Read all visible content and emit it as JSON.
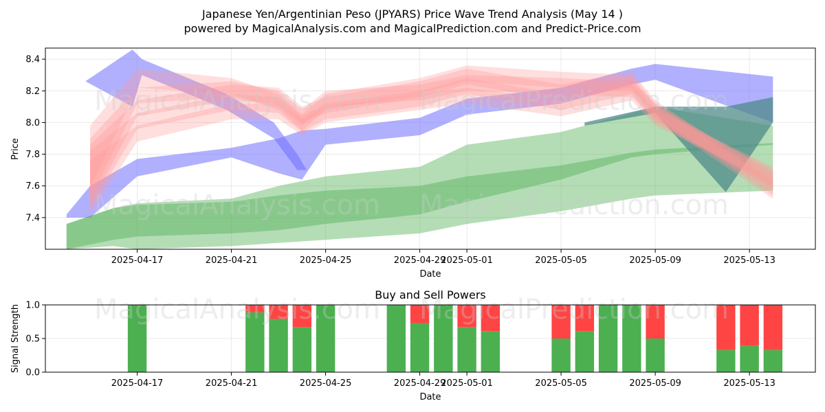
{
  "title_line1": "Japanese Yen/Argentinian Peso (JPYARS) Price Wave Trend Analysis (May 14 )",
  "title_line2": "powered by MagicalAnalysis.com and MagicalPrediction.com and Predict-Price.com",
  "watermarks": [
    "MagicalAnalysis.com",
    "MagicalPrediction.com"
  ],
  "colors": {
    "red": "#ff9999",
    "blue": "#6666ff",
    "green": "#4caf50",
    "buy": "#4caf50",
    "sell": "#ff4444",
    "grid": "#e6e6e6"
  },
  "chart_data": [
    {
      "type": "area",
      "id": "price",
      "title": "",
      "xlabel": "Date",
      "ylabel": "Price",
      "xlim": [
        "2025-04-14",
        "2025-05-15"
      ],
      "ylim": [
        7.2,
        8.47
      ],
      "xticks": [
        "2025-04-17",
        "2025-04-21",
        "2025-04-25",
        "2025-04-29",
        "2025-05-01",
        "2025-05-05",
        "2025-05-09",
        "2025-05-13"
      ],
      "yticks": [
        "7.4",
        "7.6",
        "7.8",
        "8.0",
        "8.2",
        "8.4"
      ],
      "series": [
        {
          "name": "red wave 1",
          "color": "red",
          "x": [
            "2025-04-15",
            "2025-04-17",
            "2025-04-21",
            "2025-04-23",
            "2025-04-24",
            "2025-04-25",
            "2025-04-29",
            "2025-05-01",
            "2025-05-05",
            "2025-05-08",
            "2025-05-09",
            "2025-05-14"
          ],
          "upper": [
            7.98,
            8.34,
            8.28,
            8.18,
            8.05,
            8.18,
            8.28,
            8.36,
            8.32,
            8.3,
            8.12,
            7.62
          ],
          "lower": [
            7.58,
            8.22,
            8.18,
            8.08,
            7.95,
            8.08,
            8.18,
            8.26,
            8.22,
            8.2,
            8.02,
            7.52
          ]
        },
        {
          "name": "red wave 2",
          "color": "red",
          "x": [
            "2025-04-15",
            "2025-04-17",
            "2025-04-21",
            "2025-04-23",
            "2025-04-24",
            "2025-04-25",
            "2025-04-29",
            "2025-05-01",
            "2025-05-05",
            "2025-05-08",
            "2025-05-09",
            "2025-05-14"
          ],
          "upper": [
            7.9,
            8.22,
            8.26,
            8.2,
            8.08,
            8.2,
            8.24,
            8.3,
            8.28,
            8.26,
            8.12,
            7.68
          ],
          "lower": [
            7.52,
            8.12,
            8.16,
            8.1,
            7.98,
            8.1,
            8.14,
            8.2,
            8.18,
            8.16,
            8.02,
            7.58
          ]
        },
        {
          "name": "red wave 3",
          "color": "red",
          "x": [
            "2025-04-15",
            "2025-04-17",
            "2025-04-21",
            "2025-04-23",
            "2025-04-24",
            "2025-04-25",
            "2025-04-29",
            "2025-05-01",
            "2025-05-05",
            "2025-05-08",
            "2025-05-09",
            "2025-05-14"
          ],
          "upper": [
            7.86,
            8.14,
            8.24,
            8.22,
            8.1,
            8.16,
            8.26,
            8.34,
            8.24,
            8.32,
            8.14,
            7.64
          ],
          "lower": [
            7.48,
            8.04,
            8.14,
            8.12,
            8.0,
            8.06,
            8.16,
            8.24,
            8.14,
            8.22,
            8.04,
            7.54
          ]
        },
        {
          "name": "red wave 4",
          "color": "red",
          "x": [
            "2025-04-15",
            "2025-04-17",
            "2025-04-21",
            "2025-04-23",
            "2025-04-24",
            "2025-04-25",
            "2025-04-29",
            "2025-05-01",
            "2025-05-05",
            "2025-05-08",
            "2025-05-09",
            "2025-05-14"
          ],
          "upper": [
            7.82,
            8.06,
            8.18,
            8.16,
            8.04,
            8.12,
            8.2,
            8.28,
            8.18,
            8.28,
            8.1,
            7.7
          ],
          "lower": [
            7.46,
            7.96,
            8.08,
            8.06,
            7.94,
            8.02,
            8.1,
            8.18,
            8.08,
            8.18,
            8.0,
            7.6
          ]
        },
        {
          "name": "red wave 5",
          "color": "red",
          "x": [
            "2025-04-15",
            "2025-04-17",
            "2025-04-21",
            "2025-04-23",
            "2025-04-24",
            "2025-04-25",
            "2025-04-29",
            "2025-05-01",
            "2025-05-05",
            "2025-05-08",
            "2025-05-09",
            "2025-05-14"
          ],
          "upper": [
            7.76,
            7.98,
            8.12,
            8.12,
            8.02,
            8.1,
            8.18,
            8.22,
            8.14,
            8.24,
            8.08,
            7.72
          ],
          "lower": [
            7.42,
            7.88,
            8.02,
            8.02,
            7.92,
            8.0,
            8.08,
            8.12,
            8.04,
            8.14,
            7.98,
            7.62
          ]
        },
        {
          "name": "blue wave",
          "color": "blue",
          "x": [
            "2025-04-14",
            "2025-04-15",
            "2025-04-17",
            "2025-04-21",
            "2025-04-23",
            "2025-04-24",
            "2025-04-25",
            "2025-04-29",
            "2025-05-01",
            "2025-05-05",
            "2025-05-08",
            "2025-05-09",
            "2025-05-14"
          ],
          "upper": [
            7.42,
            7.6,
            7.77,
            7.84,
            7.9,
            7.95,
            7.96,
            8.03,
            8.15,
            8.22,
            8.34,
            8.37,
            8.29
          ],
          "lower": [
            7.4,
            7.4,
            7.66,
            7.78,
            7.68,
            7.64,
            7.86,
            7.92,
            8.05,
            8.12,
            8.24,
            8.27,
            8.0
          ]
        },
        {
          "name": "blue spike",
          "color": "blue",
          "x": [
            "2025-04-14.8",
            "2025-04-16.8",
            "2025-04-17.2",
            "2025-04-20.8",
            "2025-04-22.8",
            "2025-04-23.8",
            "2025-04-24.2"
          ],
          "upper": [
            8.26,
            8.46,
            8.4,
            8.18,
            8.0,
            7.8,
            7.7
          ],
          "lower": [
            8.26,
            8.1,
            8.3,
            8.08,
            7.9,
            7.7,
            7.7
          ]
        },
        {
          "name": "teal band",
          "color": "teal",
          "x": [
            "2025-05-06",
            "2025-05-09",
            "2025-05-12",
            "2025-05-14"
          ],
          "upper": [
            8.0,
            8.1,
            8.1,
            8.16
          ],
          "lower": [
            7.98,
            8.06,
            7.56,
            8.0
          ]
        },
        {
          "name": "green wave light",
          "color": "green",
          "x": [
            "2025-04-14",
            "2025-04-16",
            "2025-04-17",
            "2025-04-21",
            "2025-04-23",
            "2025-04-25",
            "2025-04-29",
            "2025-05-01",
            "2025-05-05",
            "2025-05-08",
            "2025-05-09",
            "2025-05-14"
          ],
          "upper": [
            7.36,
            7.46,
            7.49,
            7.52,
            7.6,
            7.66,
            7.72,
            7.86,
            7.94,
            8.06,
            8.1,
            7.98
          ],
          "lower": [
            7.2,
            7.22,
            7.2,
            7.22,
            7.24,
            7.26,
            7.3,
            7.36,
            7.44,
            7.52,
            7.54,
            7.57
          ]
        },
        {
          "name": "green wave dark",
          "color": "green",
          "x": [
            "2025-04-14",
            "2025-04-16",
            "2025-04-17",
            "2025-04-21",
            "2025-04-23",
            "2025-04-25",
            "2025-04-29",
            "2025-05-01",
            "2025-05-05",
            "2025-05-08",
            "2025-05-09",
            "2025-05-14"
          ],
          "upper": [
            7.36,
            7.46,
            7.48,
            7.5,
            7.54,
            7.57,
            7.6,
            7.66,
            7.73,
            7.81,
            7.83,
            7.87
          ],
          "lower": [
            7.2,
            7.26,
            7.28,
            7.3,
            7.32,
            7.36,
            7.42,
            7.5,
            7.64,
            7.78,
            7.8,
            7.86
          ]
        }
      ]
    },
    {
      "type": "bar",
      "id": "signal",
      "title": "Buy and Sell Powers",
      "xlabel": "Date",
      "ylabel": "Signal Strength",
      "ylim": [
        0,
        1
      ],
      "yticks": [
        "0.0",
        "0.5",
        "1.0"
      ],
      "xticks": [
        "2025-04-17",
        "2025-04-21",
        "2025-04-25",
        "2025-04-29",
        "2025-05-01",
        "2025-05-05",
        "2025-05-09",
        "2025-05-13"
      ],
      "categories": [
        "2025-04-17",
        "2025-04-22",
        "2025-04-23",
        "2025-04-24",
        "2025-04-25",
        "2025-04-28",
        "2025-04-29",
        "2025-04-30",
        "2025-05-01",
        "2025-05-02",
        "2025-05-05",
        "2025-05-06",
        "2025-05-07",
        "2025-05-08",
        "2025-05-09",
        "2025-05-12",
        "2025-05-13",
        "2025-05-14"
      ],
      "series": [
        {
          "name": "Buy",
          "color": "buy",
          "values": [
            1.0,
            0.89,
            0.79,
            0.67,
            1.0,
            1.0,
            0.73,
            1.0,
            0.67,
            0.61,
            0.5,
            0.61,
            1.0,
            1.0,
            0.5,
            0.33,
            0.39,
            0.33
          ]
        },
        {
          "name": "Sell",
          "color": "sell",
          "values": [
            0.0,
            0.11,
            0.21,
            0.33,
            0.0,
            0.0,
            0.27,
            0.0,
            0.33,
            0.39,
            0.5,
            0.39,
            0.0,
            0.0,
            0.5,
            0.67,
            0.61,
            0.67
          ]
        }
      ]
    }
  ]
}
